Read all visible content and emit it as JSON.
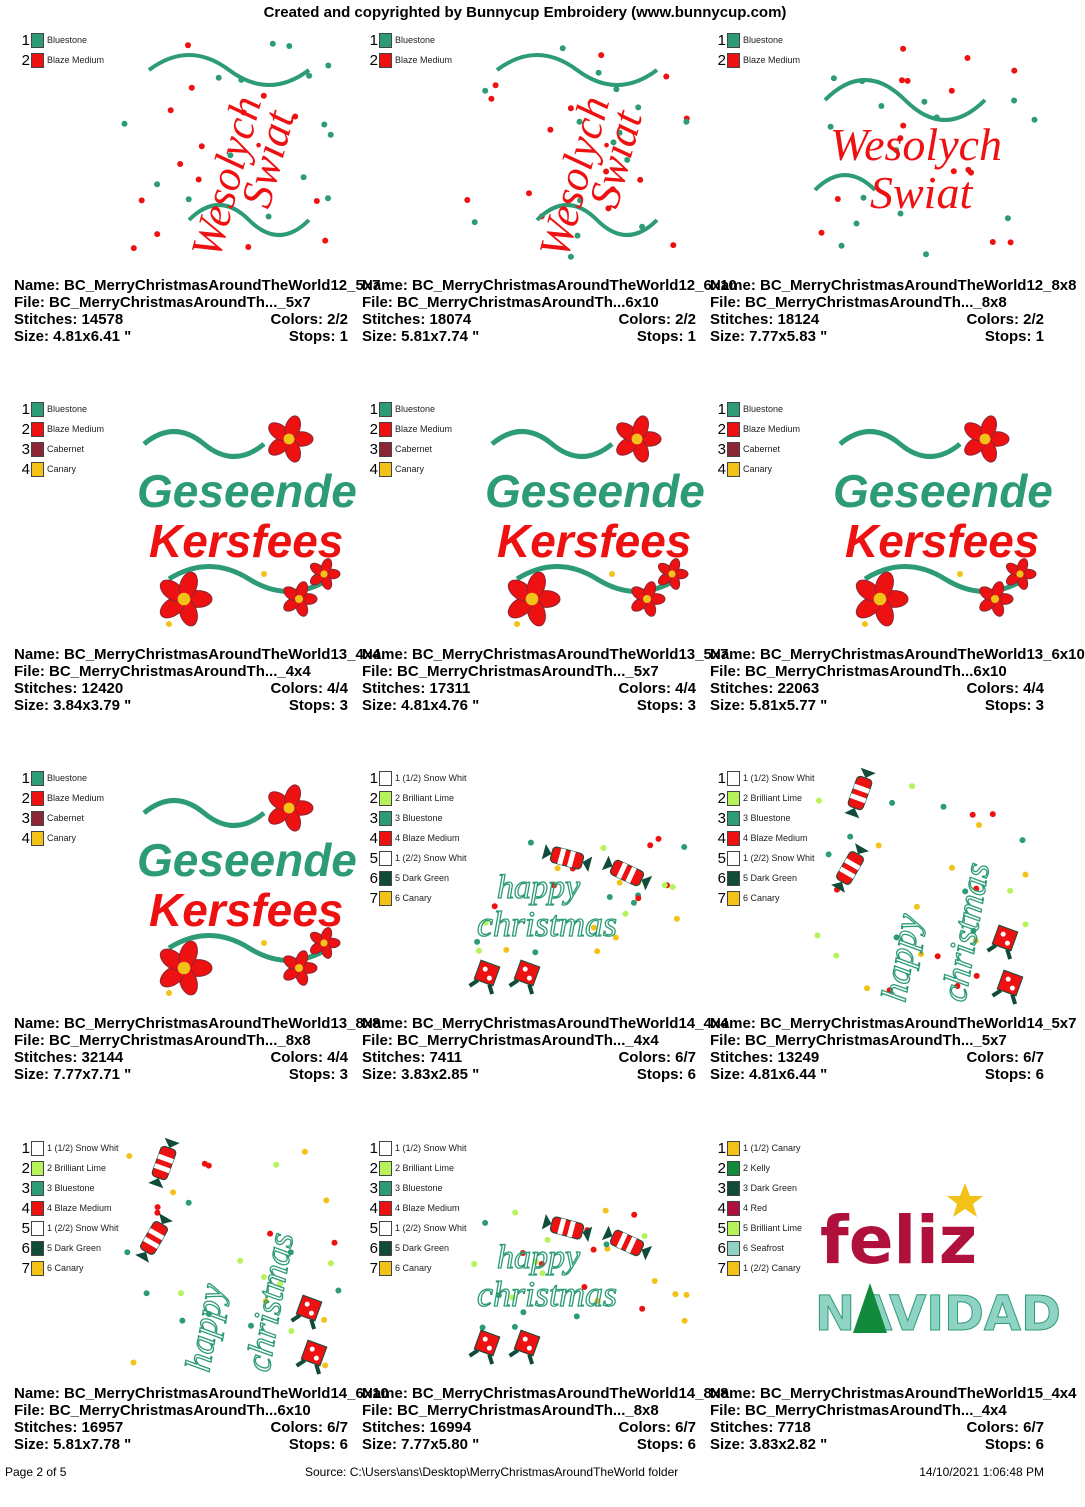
{
  "header": {
    "title": "Created and copyrighted by Bunnycup Embroidery (www.bunnycup.com)"
  },
  "footer": {
    "page": "Page 2 of 5",
    "source": "Source: C:\\Users\\ans\\Desktop\\MerryChristmasAroundTheWorld folder",
    "datetime": "14/10/2021 1:06:48 PM"
  },
  "palette": {
    "Bluestone": "#2e9b77",
    "Blaze Medium": "#ee1111",
    "Cabernet": "#8b2635",
    "Canary": "#f2c218",
    "Snow White": "#ffffff",
    "Brilliant Lime": "#b6f25a",
    "Dark Green": "#124b3a",
    "Kelly": "#128a3c",
    "Red": "#b0103c",
    "Seafrost": "#8fd3c4"
  },
  "designs": [
    {
      "type": "wesolych",
      "orient": "vertical",
      "lettering": [
        "Wesolych",
        "Swiat"
      ],
      "colors": [
        {
          "num": "1",
          "label": "Bluestone",
          "hex": "#2e9b77"
        },
        {
          "num": "2",
          "label": "Blaze Medium",
          "hex": "#ee1111"
        }
      ],
      "name": "Name: BC_MerryChristmasAroundTheWorld12_5x7",
      "file": "File: BC_MerryChristmasAroundTh..._5x7",
      "stitches": "Stitches: 14578",
      "colors_count": "Colors: 2/2",
      "size": "Size: 4.81x6.41 \"",
      "stops": "Stops: 1"
    },
    {
      "type": "wesolych",
      "orient": "vertical",
      "lettering": [
        "Wesolych",
        "Swiat"
      ],
      "colors": [
        {
          "num": "1",
          "label": "Bluestone",
          "hex": "#2e9b77"
        },
        {
          "num": "2",
          "label": "Blaze Medium",
          "hex": "#ee1111"
        }
      ],
      "name": "Name: BC_MerryChristmasAroundTheWorld12_6x10",
      "file": "File: BC_MerryChristmasAroundTh...6x10",
      "stitches": "Stitches: 18074",
      "colors_count": "Colors: 2/2",
      "size": "Size: 5.81x7.74 \"",
      "stops": "Stops: 1"
    },
    {
      "type": "wesolych",
      "orient": "horizontal",
      "lettering": [
        "Wesolych",
        "Swiat"
      ],
      "colors": [
        {
          "num": "1",
          "label": "Bluestone",
          "hex": "#2e9b77"
        },
        {
          "num": "2",
          "label": "Blaze Medium",
          "hex": "#ee1111"
        }
      ],
      "name": "Name: BC_MerryChristmasAroundTheWorld12_8x8",
      "file": "File: BC_MerryChristmasAroundTh..._8x8",
      "stitches": "Stitches: 18124",
      "colors_count": "Colors: 2/2",
      "size": "Size: 7.77x5.83 \"",
      "stops": "Stops: 1"
    },
    {
      "type": "geseende",
      "lettering": [
        "Geseende",
        "Kersfees"
      ],
      "colors": [
        {
          "num": "1",
          "label": "Bluestone",
          "hex": "#2e9b77"
        },
        {
          "num": "2",
          "label": "Blaze Medium",
          "hex": "#ee1111"
        },
        {
          "num": "3",
          "label": "Cabernet",
          "hex": "#8b2635"
        },
        {
          "num": "4",
          "label": "Canary",
          "hex": "#f2c218"
        }
      ],
      "name": "Name: BC_MerryChristmasAroundTheWorld13_4x4",
      "file": "File: BC_MerryChristmasAroundTh..._4x4",
      "stitches": "Stitches: 12420",
      "colors_count": "Colors: 4/4",
      "size": "Size: 3.84x3.79 \"",
      "stops": "Stops: 3"
    },
    {
      "type": "geseende",
      "lettering": [
        "Geseende",
        "Kersfees"
      ],
      "colors": [
        {
          "num": "1",
          "label": "Bluestone",
          "hex": "#2e9b77"
        },
        {
          "num": "2",
          "label": "Blaze Medium",
          "hex": "#ee1111"
        },
        {
          "num": "3",
          "label": "Cabernet",
          "hex": "#8b2635"
        },
        {
          "num": "4",
          "label": "Canary",
          "hex": "#f2c218"
        }
      ],
      "name": "Name: BC_MerryChristmasAroundTheWorld13_5x7",
      "file": "File: BC_MerryChristmasAroundTh..._5x7",
      "stitches": "Stitches: 17311",
      "colors_count": "Colors: 4/4",
      "size": "Size: 4.81x4.76 \"",
      "stops": "Stops: 3"
    },
    {
      "type": "geseende",
      "lettering": [
        "Geseende",
        "Kersfees"
      ],
      "colors": [
        {
          "num": "1",
          "label": "Bluestone",
          "hex": "#2e9b77"
        },
        {
          "num": "2",
          "label": "Blaze Medium",
          "hex": "#ee1111"
        },
        {
          "num": "3",
          "label": "Cabernet",
          "hex": "#8b2635"
        },
        {
          "num": "4",
          "label": "Canary",
          "hex": "#f2c218"
        }
      ],
      "name": "Name: BC_MerryChristmasAroundTheWorld13_6x10",
      "file": "File: BC_MerryChristmasAroundTh...6x10",
      "stitches": "Stitches: 22063",
      "colors_count": "Colors: 4/4",
      "size": "Size: 5.81x5.77 \"",
      "stops": "Stops: 3"
    },
    {
      "type": "geseende",
      "lettering": [
        "Geseende",
        "Kersfees"
      ],
      "colors": [
        {
          "num": "1",
          "label": "Bluestone",
          "hex": "#2e9b77"
        },
        {
          "num": "2",
          "label": "Blaze Medium",
          "hex": "#ee1111"
        },
        {
          "num": "3",
          "label": "Cabernet",
          "hex": "#8b2635"
        },
        {
          "num": "4",
          "label": "Canary",
          "hex": "#f2c218"
        }
      ],
      "name": "Name: BC_MerryChristmasAroundTheWorld13_8x8",
      "file": "File: BC_MerryChristmasAroundTh..._8x8",
      "stitches": "Stitches: 32144",
      "colors_count": "Colors: 4/4",
      "size": "Size: 7.77x7.71 \"",
      "stops": "Stops: 3"
    },
    {
      "type": "happy",
      "orient": "horizontal",
      "lettering": [
        "happy",
        "christmas"
      ],
      "colors": [
        {
          "num": "1",
          "label": "1 (1/2) Snow Whit",
          "hex": "#ffffff"
        },
        {
          "num": "2",
          "label": "2 Brilliant Lime",
          "hex": "#b6f25a"
        },
        {
          "num": "3",
          "label": "3 Bluestone",
          "hex": "#2e9b77"
        },
        {
          "num": "4",
          "label": "4 Blaze Medium",
          "hex": "#ee1111"
        },
        {
          "num": "5",
          "label": "1 (2/2) Snow Whit",
          "hex": "#ffffff"
        },
        {
          "num": "6",
          "label": "5 Dark Green",
          "hex": "#124b3a"
        },
        {
          "num": "7",
          "label": "6 Canary",
          "hex": "#f2c218"
        }
      ],
      "name": "Name: BC_MerryChristmasAroundTheWorld14_4x4",
      "file": "File: BC_MerryChristmasAroundTh..._4x4",
      "stitches": "Stitches: 7411",
      "colors_count": "Colors: 6/7",
      "size": "Size: 3.83x2.85 \"",
      "stops": "Stops: 6"
    },
    {
      "type": "happy",
      "orient": "vertical",
      "lettering": [
        "happy",
        "christmas"
      ],
      "colors": [
        {
          "num": "1",
          "label": "1 (1/2) Snow Whit",
          "hex": "#ffffff"
        },
        {
          "num": "2",
          "label": "2 Brilliant Lime",
          "hex": "#b6f25a"
        },
        {
          "num": "3",
          "label": "3 Bluestone",
          "hex": "#2e9b77"
        },
        {
          "num": "4",
          "label": "4 Blaze Medium",
          "hex": "#ee1111"
        },
        {
          "num": "5",
          "label": "1 (2/2) Snow Whit",
          "hex": "#ffffff"
        },
        {
          "num": "6",
          "label": "5 Dark Green",
          "hex": "#124b3a"
        },
        {
          "num": "7",
          "label": "6 Canary",
          "hex": "#f2c218"
        }
      ],
      "name": "Name: BC_MerryChristmasAroundTheWorld14_5x7",
      "file": "File: BC_MerryChristmasAroundTh..._5x7",
      "stitches": "Stitches: 13249",
      "colors_count": "Colors: 6/7",
      "size": "Size: 4.81x6.44 \"",
      "stops": "Stops: 6"
    },
    {
      "type": "happy",
      "orient": "vertical",
      "lettering": [
        "happy",
        "christmas"
      ],
      "colors": [
        {
          "num": "1",
          "label": "1 (1/2) Snow Whit",
          "hex": "#ffffff"
        },
        {
          "num": "2",
          "label": "2 Brilliant Lime",
          "hex": "#b6f25a"
        },
        {
          "num": "3",
          "label": "3 Bluestone",
          "hex": "#2e9b77"
        },
        {
          "num": "4",
          "label": "4 Blaze Medium",
          "hex": "#ee1111"
        },
        {
          "num": "5",
          "label": "1 (2/2) Snow Whit",
          "hex": "#ffffff"
        },
        {
          "num": "6",
          "label": "5 Dark Green",
          "hex": "#124b3a"
        },
        {
          "num": "7",
          "label": "6 Canary",
          "hex": "#f2c218"
        }
      ],
      "name": "Name: BC_MerryChristmasAroundTheWorld14_6x10",
      "file": "File: BC_MerryChristmasAroundTh...6x10",
      "stitches": "Stitches: 16957",
      "colors_count": "Colors: 6/7",
      "size": "Size: 5.81x7.78 \"",
      "stops": "Stops: 6"
    },
    {
      "type": "happy",
      "orient": "horizontal",
      "lettering": [
        "happy",
        "christmas"
      ],
      "colors": [
        {
          "num": "1",
          "label": "1 (1/2) Snow Whit",
          "hex": "#ffffff"
        },
        {
          "num": "2",
          "label": "2 Brilliant Lime",
          "hex": "#b6f25a"
        },
        {
          "num": "3",
          "label": "3 Bluestone",
          "hex": "#2e9b77"
        },
        {
          "num": "4",
          "label": "4 Blaze Medium",
          "hex": "#ee1111"
        },
        {
          "num": "5",
          "label": "1 (2/2) Snow Whit",
          "hex": "#ffffff"
        },
        {
          "num": "6",
          "label": "5 Dark Green",
          "hex": "#124b3a"
        },
        {
          "num": "7",
          "label": "6 Canary",
          "hex": "#f2c218"
        }
      ],
      "name": "Name: BC_MerryChristmasAroundTheWorld14_8x8",
      "file": "File: BC_MerryChristmasAroundTh..._8x8",
      "stitches": "Stitches: 16994",
      "colors_count": "Colors: 6/7",
      "size": "Size: 7.77x5.80 \"",
      "stops": "Stops: 6"
    },
    {
      "type": "feliz",
      "lettering": [
        "feliz",
        "NAVIDAD"
      ],
      "colors": [
        {
          "num": "1",
          "label": "1 (1/2) Canary",
          "hex": "#f2c218"
        },
        {
          "num": "2",
          "label": "2 Kelly",
          "hex": "#128a3c"
        },
        {
          "num": "3",
          "label": "3 Dark Green",
          "hex": "#124b3a"
        },
        {
          "num": "4",
          "label": "4 Red",
          "hex": "#b0103c"
        },
        {
          "num": "5",
          "label": "5 Brilliant Lime",
          "hex": "#b6f25a"
        },
        {
          "num": "6",
          "label": "6 Seafrost",
          "hex": "#8fd3c4"
        },
        {
          "num": "7",
          "label": "1 (2/2) Canary",
          "hex": "#f2c218"
        }
      ],
      "name": "Name: BC_MerryChristmasAroundTheWorld15_4x4",
      "file": "File: BC_MerryChristmasAroundTh..._4x4",
      "stitches": "Stitches: 7718",
      "colors_count": "Colors: 6/7",
      "size": "Size: 3.83x2.82 \"",
      "stops": "Stops: 6"
    }
  ]
}
